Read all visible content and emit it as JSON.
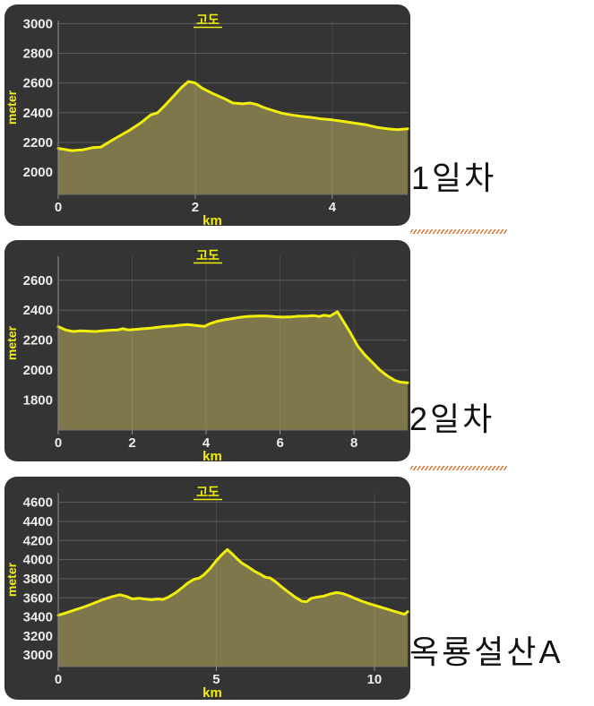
{
  "app": {
    "description_labels": {
      "chart1_side_label": "1일차",
      "chart2_side_label": "2일차",
      "chart3_side_label": "옥룡설산A"
    }
  },
  "theme": {
    "page_bg": "#ffffff",
    "card_bg": "#343434",
    "grid_h_color": "#5c5c5c",
    "grid_v_color": "rgba(255,255,255,0.10)",
    "axis_color": "#8f8f8f",
    "baseline_color": "#6f6f6f",
    "tick_text_color": "#ececec",
    "line_color": "#f1ee09",
    "fill_color": "#7d774b",
    "accent_yellow": "#f1ee09",
    "side_label_color": "#111111",
    "separator_color": "#d9732f"
  },
  "chart_data": [
    {
      "type": "area",
      "title": "고도",
      "xlabel": "km",
      "ylabel": "meter",
      "side_label": "1일차",
      "xlim": [
        0,
        5.1
      ],
      "ylim": [
        1850,
        3020
      ],
      "xticks": [
        0,
        2,
        4
      ],
      "yticks": [
        2000,
        2200,
        2400,
        2600,
        2800,
        3000
      ],
      "grid": true,
      "points": [
        [
          0,
          2160
        ],
        [
          0.2,
          2145
        ],
        [
          0.35,
          2150
        ],
        [
          0.5,
          2165
        ],
        [
          0.62,
          2168
        ],
        [
          0.75,
          2205
        ],
        [
          0.9,
          2245
        ],
        [
          1.05,
          2285
        ],
        [
          1.2,
          2330
        ],
        [
          1.35,
          2385
        ],
        [
          1.45,
          2400
        ],
        [
          1.55,
          2445
        ],
        [
          1.7,
          2520
        ],
        [
          1.8,
          2570
        ],
        [
          1.9,
          2610
        ],
        [
          2.0,
          2600
        ],
        [
          2.1,
          2565
        ],
        [
          2.25,
          2530
        ],
        [
          2.4,
          2500
        ],
        [
          2.55,
          2465
        ],
        [
          2.7,
          2460
        ],
        [
          2.8,
          2466
        ],
        [
          2.9,
          2455
        ],
        [
          3.0,
          2435
        ],
        [
          3.1,
          2420
        ],
        [
          3.25,
          2398
        ],
        [
          3.4,
          2385
        ],
        [
          3.55,
          2375
        ],
        [
          3.7,
          2368
        ],
        [
          3.85,
          2358
        ],
        [
          4.0,
          2352
        ],
        [
          4.15,
          2342
        ],
        [
          4.3,
          2332
        ],
        [
          4.5,
          2318
        ],
        [
          4.65,
          2302
        ],
        [
          4.8,
          2292
        ],
        [
          4.95,
          2286
        ],
        [
          5.1,
          2292
        ]
      ]
    },
    {
      "type": "area",
      "title": "고도",
      "xlabel": "km",
      "ylabel": "meter",
      "side_label": "2일차",
      "xlim": [
        0,
        9.45
      ],
      "ylim": [
        1600,
        2760
      ],
      "xticks": [
        0,
        2,
        4,
        6,
        8
      ],
      "yticks": [
        1800,
        2000,
        2200,
        2400,
        2600
      ],
      "grid": true,
      "points": [
        [
          0,
          2290
        ],
        [
          0.2,
          2268
        ],
        [
          0.4,
          2258
        ],
        [
          0.6,
          2262
        ],
        [
          0.8,
          2260
        ],
        [
          1.0,
          2258
        ],
        [
          1.2,
          2262
        ],
        [
          1.4,
          2266
        ],
        [
          1.6,
          2268
        ],
        [
          1.75,
          2276
        ],
        [
          1.9,
          2268
        ],
        [
          2.1,
          2272
        ],
        [
          2.3,
          2276
        ],
        [
          2.5,
          2280
        ],
        [
          2.7,
          2286
        ],
        [
          2.9,
          2292
        ],
        [
          3.1,
          2294
        ],
        [
          3.3,
          2300
        ],
        [
          3.5,
          2304
        ],
        [
          3.65,
          2300
        ],
        [
          3.8,
          2296
        ],
        [
          3.95,
          2292
        ],
        [
          4.1,
          2310
        ],
        [
          4.3,
          2326
        ],
        [
          4.5,
          2336
        ],
        [
          4.7,
          2344
        ],
        [
          4.9,
          2352
        ],
        [
          5.1,
          2358
        ],
        [
          5.3,
          2360
        ],
        [
          5.5,
          2362
        ],
        [
          5.7,
          2360
        ],
        [
          5.9,
          2356
        ],
        [
          6.1,
          2354
        ],
        [
          6.3,
          2356
        ],
        [
          6.5,
          2360
        ],
        [
          6.7,
          2360
        ],
        [
          6.9,
          2364
        ],
        [
          7.05,
          2358
        ],
        [
          7.2,
          2366
        ],
        [
          7.35,
          2360
        ],
        [
          7.55,
          2390
        ],
        [
          7.7,
          2330
        ],
        [
          7.9,
          2250
        ],
        [
          8.1,
          2160
        ],
        [
          8.3,
          2100
        ],
        [
          8.5,
          2050
        ],
        [
          8.7,
          2000
        ],
        [
          8.9,
          1962
        ],
        [
          9.1,
          1932
        ],
        [
          9.25,
          1920
        ],
        [
          9.45,
          1916
        ]
      ]
    },
    {
      "type": "area",
      "title": "고도",
      "xlabel": "km",
      "ylabel": "meter",
      "side_label": "옥룡설산A",
      "xlim": [
        0,
        11.05
      ],
      "ylim": [
        2880,
        4700
      ],
      "xticks": [
        0,
        5,
        10
      ],
      "yticks": [
        3000,
        3200,
        3400,
        3600,
        3800,
        4000,
        4200,
        4400,
        4600
      ],
      "grid": true,
      "points": [
        [
          0,
          3418
        ],
        [
          0.25,
          3442
        ],
        [
          0.5,
          3470
        ],
        [
          0.8,
          3502
        ],
        [
          1.1,
          3540
        ],
        [
          1.4,
          3580
        ],
        [
          1.7,
          3612
        ],
        [
          1.95,
          3632
        ],
        [
          2.15,
          3615
        ],
        [
          2.35,
          3588
        ],
        [
          2.55,
          3596
        ],
        [
          2.75,
          3586
        ],
        [
          2.95,
          3580
        ],
        [
          3.15,
          3588
        ],
        [
          3.3,
          3582
        ],
        [
          3.5,
          3610
        ],
        [
          3.7,
          3650
        ],
        [
          3.9,
          3700
        ],
        [
          4.1,
          3755
        ],
        [
          4.3,
          3795
        ],
        [
          4.45,
          3805
        ],
        [
          4.6,
          3840
        ],
        [
          4.8,
          3905
        ],
        [
          5.0,
          3990
        ],
        [
          5.2,
          4060
        ],
        [
          5.35,
          4105
        ],
        [
          5.5,
          4060
        ],
        [
          5.65,
          4010
        ],
        [
          5.8,
          3965
        ],
        [
          6.0,
          3925
        ],
        [
          6.2,
          3880
        ],
        [
          6.4,
          3845
        ],
        [
          6.55,
          3815
        ],
        [
          6.7,
          3808
        ],
        [
          6.9,
          3762
        ],
        [
          7.1,
          3705
        ],
        [
          7.3,
          3655
        ],
        [
          7.5,
          3605
        ],
        [
          7.7,
          3565
        ],
        [
          7.85,
          3558
        ],
        [
          8.0,
          3595
        ],
        [
          8.2,
          3608
        ],
        [
          8.4,
          3618
        ],
        [
          8.6,
          3640
        ],
        [
          8.8,
          3655
        ],
        [
          9.0,
          3645
        ],
        [
          9.2,
          3620
        ],
        [
          9.4,
          3592
        ],
        [
          9.6,
          3565
        ],
        [
          9.8,
          3542
        ],
        [
          10.0,
          3522
        ],
        [
          10.2,
          3502
        ],
        [
          10.4,
          3482
        ],
        [
          10.6,
          3462
        ],
        [
          10.8,
          3442
        ],
        [
          10.95,
          3428
        ],
        [
          11.05,
          3455
        ]
      ]
    }
  ]
}
